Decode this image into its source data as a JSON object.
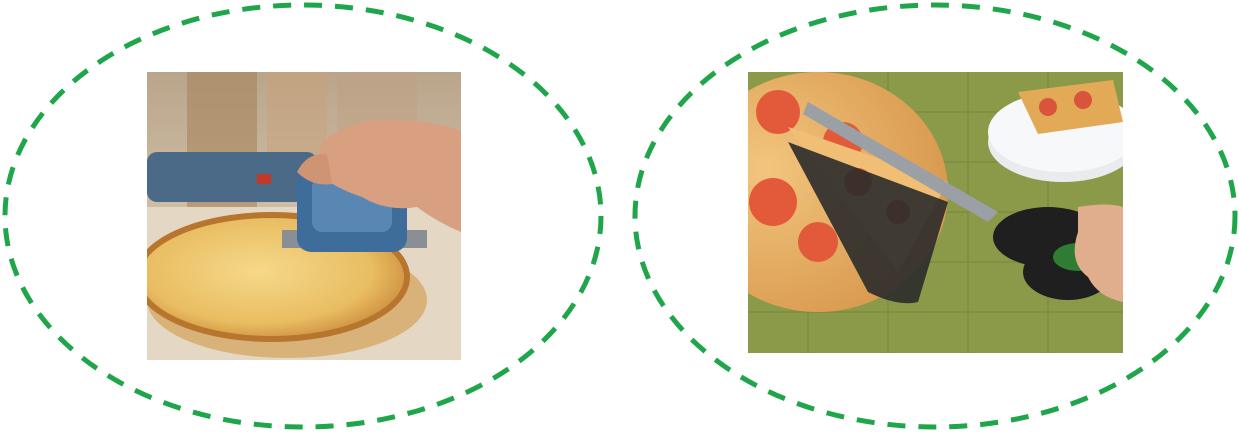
{
  "colors": {
    "ellipse_stroke": "#1fa64a",
    "background": "#ffffff"
  },
  "items": [
    {
      "name": "rotary-pizza-cutter",
      "icon": "pizza-photo"
    },
    {
      "name": "pizza-scissors-with-spatula",
      "icon": "pizza-photo"
    }
  ]
}
